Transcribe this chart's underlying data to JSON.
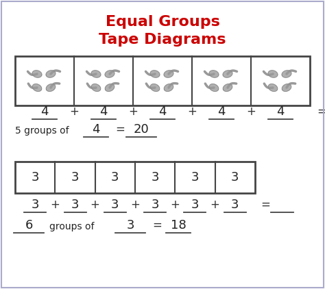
{
  "title_line1": "Equal Groups",
  "title_line2": "Tape Diagrams",
  "title_color": "#cc0000",
  "title_fontsize": 16,
  "bg_color": "#ffffff",
  "border_color": "#444444",
  "example1": {
    "n_groups": 5,
    "value": "4",
    "total": "20"
  },
  "example2": {
    "n_groups": 6,
    "value": "3",
    "total": "18"
  }
}
